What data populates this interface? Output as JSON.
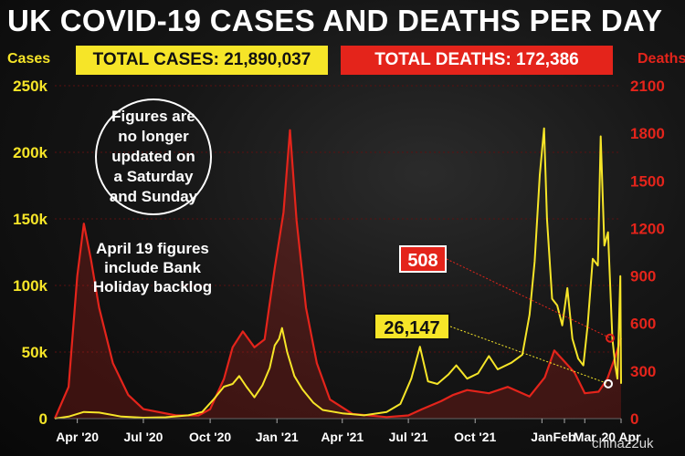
{
  "title": "UK COVID-19 CASES AND DEATHS PER DAY",
  "totals": {
    "cases_label": "TOTAL CASES: 21,890,037",
    "deaths_label": "TOTAL DEATHS: 172,386"
  },
  "axis_units": {
    "left": "Cases",
    "right": "Deaths"
  },
  "notes": {
    "circle": "Figures are no longer updated on a Saturday and Sunday",
    "bank_holiday": "April 19 figures include Bank Holiday backlog"
  },
  "callouts": {
    "deaths_latest": "508",
    "cases_latest": "26,147"
  },
  "watermark": "chinaz2uk",
  "colors": {
    "cases": "#f6e528",
    "deaths": "#e4241b",
    "background": "#0d0d0d",
    "text": "#ffffff"
  },
  "chart_data": {
    "type": "line",
    "x_range": [
      "2020-03-01",
      "2022-04-20"
    ],
    "x_ticks": [
      {
        "label": "Apr '20",
        "date": "2020-04-01"
      },
      {
        "label": "Jul '20",
        "date": "2020-07-01"
      },
      {
        "label": "Oct '20",
        "date": "2020-10-01"
      },
      {
        "label": "Jan '21",
        "date": "2021-01-01"
      },
      {
        "label": "Apr '21",
        "date": "2021-04-01"
      },
      {
        "label": "Jul '21",
        "date": "2021-07-01"
      },
      {
        "label": "Oct '21",
        "date": "2021-10-01"
      },
      {
        "label": "Jan",
        "date": "2022-01-01"
      },
      {
        "label": "Feb",
        "date": "2022-02-01"
      },
      {
        "label": "Mar",
        "date": "2022-03-01"
      },
      {
        "label": "20 Apr",
        "date": "2022-04-20"
      }
    ],
    "y_left": {
      "label": "Cases",
      "min": 0,
      "max": 250000,
      "ticks": [
        0,
        50000,
        100000,
        150000,
        200000,
        250000
      ],
      "tick_labels": [
        "0",
        "50k",
        "100k",
        "150k",
        "200k",
        "250k"
      ]
    },
    "y_right": {
      "label": "Deaths",
      "min": 0,
      "max": 2100,
      "ticks": [
        0,
        300,
        600,
        900,
        1200,
        1500,
        1800,
        2100
      ],
      "tick_labels": [
        "0",
        "300",
        "600",
        "900",
        "1200",
        "1500",
        "1800",
        "2100"
      ]
    },
    "grid": true,
    "series": [
      {
        "name": "Cases",
        "axis": "left",
        "points": [
          [
            "2020-03-01",
            0
          ],
          [
            "2020-03-20",
            1500
          ],
          [
            "2020-04-10",
            5000
          ],
          [
            "2020-05-01",
            4500
          ],
          [
            "2020-06-01",
            1500
          ],
          [
            "2020-07-01",
            700
          ],
          [
            "2020-08-01",
            1000
          ],
          [
            "2020-09-01",
            2500
          ],
          [
            "2020-09-20",
            5000
          ],
          [
            "2020-10-05",
            14000
          ],
          [
            "2020-10-20",
            24000
          ],
          [
            "2020-11-01",
            26000
          ],
          [
            "2020-11-10",
            32000
          ],
          [
            "2020-11-20",
            24000
          ],
          [
            "2020-12-01",
            16000
          ],
          [
            "2020-12-12",
            25000
          ],
          [
            "2020-12-22",
            38000
          ],
          [
            "2020-12-29",
            55000
          ],
          [
            "2021-01-04",
            60000
          ],
          [
            "2021-01-08",
            68000
          ],
          [
            "2021-01-15",
            50000
          ],
          [
            "2021-01-25",
            32000
          ],
          [
            "2021-02-05",
            22000
          ],
          [
            "2021-02-20",
            12000
          ],
          [
            "2021-03-05",
            6500
          ],
          [
            "2021-04-01",
            4000
          ],
          [
            "2021-05-01",
            2500
          ],
          [
            "2021-06-01",
            5000
          ],
          [
            "2021-06-20",
            11000
          ],
          [
            "2021-07-05",
            30000
          ],
          [
            "2021-07-17",
            54000
          ],
          [
            "2021-07-28",
            28000
          ],
          [
            "2021-08-10",
            26000
          ],
          [
            "2021-08-25",
            33000
          ],
          [
            "2021-09-05",
            40000
          ],
          [
            "2021-09-20",
            30000
          ],
          [
            "2021-10-05",
            34000
          ],
          [
            "2021-10-20",
            47000
          ],
          [
            "2021-11-01",
            37000
          ],
          [
            "2021-11-20",
            42000
          ],
          [
            "2021-12-05",
            48000
          ],
          [
            "2021-12-15",
            78000
          ],
          [
            "2021-12-22",
            118000
          ],
          [
            "2021-12-29",
            183000
          ],
          [
            "2022-01-04",
            218000
          ],
          [
            "2022-01-08",
            150000
          ],
          [
            "2022-01-15",
            90000
          ],
          [
            "2022-01-22",
            85000
          ],
          [
            "2022-01-29",
            70000
          ],
          [
            "2022-02-05",
            98000
          ],
          [
            "2022-02-12",
            60000
          ],
          [
            "2022-02-20",
            45000
          ],
          [
            "2022-02-27",
            40000
          ],
          [
            "2022-03-05",
            70000
          ],
          [
            "2022-03-12",
            120000
          ],
          [
            "2022-03-19",
            115000
          ],
          [
            "2022-03-23",
            212000
          ],
          [
            "2022-03-28",
            130000
          ],
          [
            "2022-04-02",
            140000
          ],
          [
            "2022-04-08",
            60000
          ],
          [
            "2022-04-12",
            40000
          ],
          [
            "2022-04-15",
            30000
          ],
          [
            "2022-04-19",
            107000
          ],
          [
            "2022-04-20",
            26147
          ]
        ]
      },
      {
        "name": "Deaths",
        "axis": "right",
        "points": [
          [
            "2020-03-01",
            0
          ],
          [
            "2020-03-20",
            200
          ],
          [
            "2020-04-01",
            900
          ],
          [
            "2020-04-10",
            1230
          ],
          [
            "2020-04-20",
            1000
          ],
          [
            "2020-05-01",
            700
          ],
          [
            "2020-05-20",
            350
          ],
          [
            "2020-06-10",
            150
          ],
          [
            "2020-07-01",
            60
          ],
          [
            "2020-08-15",
            20
          ],
          [
            "2020-09-15",
            20
          ],
          [
            "2020-10-01",
            60
          ],
          [
            "2020-10-20",
            250
          ],
          [
            "2020-11-01",
            450
          ],
          [
            "2020-11-15",
            550
          ],
          [
            "2020-12-01",
            450
          ],
          [
            "2020-12-15",
            500
          ],
          [
            "2020-12-29",
            950
          ],
          [
            "2021-01-10",
            1300
          ],
          [
            "2021-01-19",
            1820
          ],
          [
            "2021-01-28",
            1250
          ],
          [
            "2021-02-10",
            700
          ],
          [
            "2021-02-25",
            350
          ],
          [
            "2021-03-15",
            120
          ],
          [
            "2021-04-15",
            30
          ],
          [
            "2021-06-01",
            10
          ],
          [
            "2021-07-01",
            20
          ],
          [
            "2021-07-20",
            60
          ],
          [
            "2021-08-15",
            110
          ],
          [
            "2021-09-01",
            150
          ],
          [
            "2021-09-20",
            180
          ],
          [
            "2021-10-20",
            160
          ],
          [
            "2021-11-15",
            200
          ],
          [
            "2021-12-15",
            140
          ],
          [
            "2022-01-05",
            260
          ],
          [
            "2022-01-18",
            430
          ],
          [
            "2022-02-01",
            360
          ],
          [
            "2022-02-15",
            290
          ],
          [
            "2022-03-01",
            160
          ],
          [
            "2022-03-20",
            170
          ],
          [
            "2022-04-01",
            250
          ],
          [
            "2022-04-12",
            390
          ],
          [
            "2022-04-20",
            508
          ]
        ]
      }
    ]
  }
}
